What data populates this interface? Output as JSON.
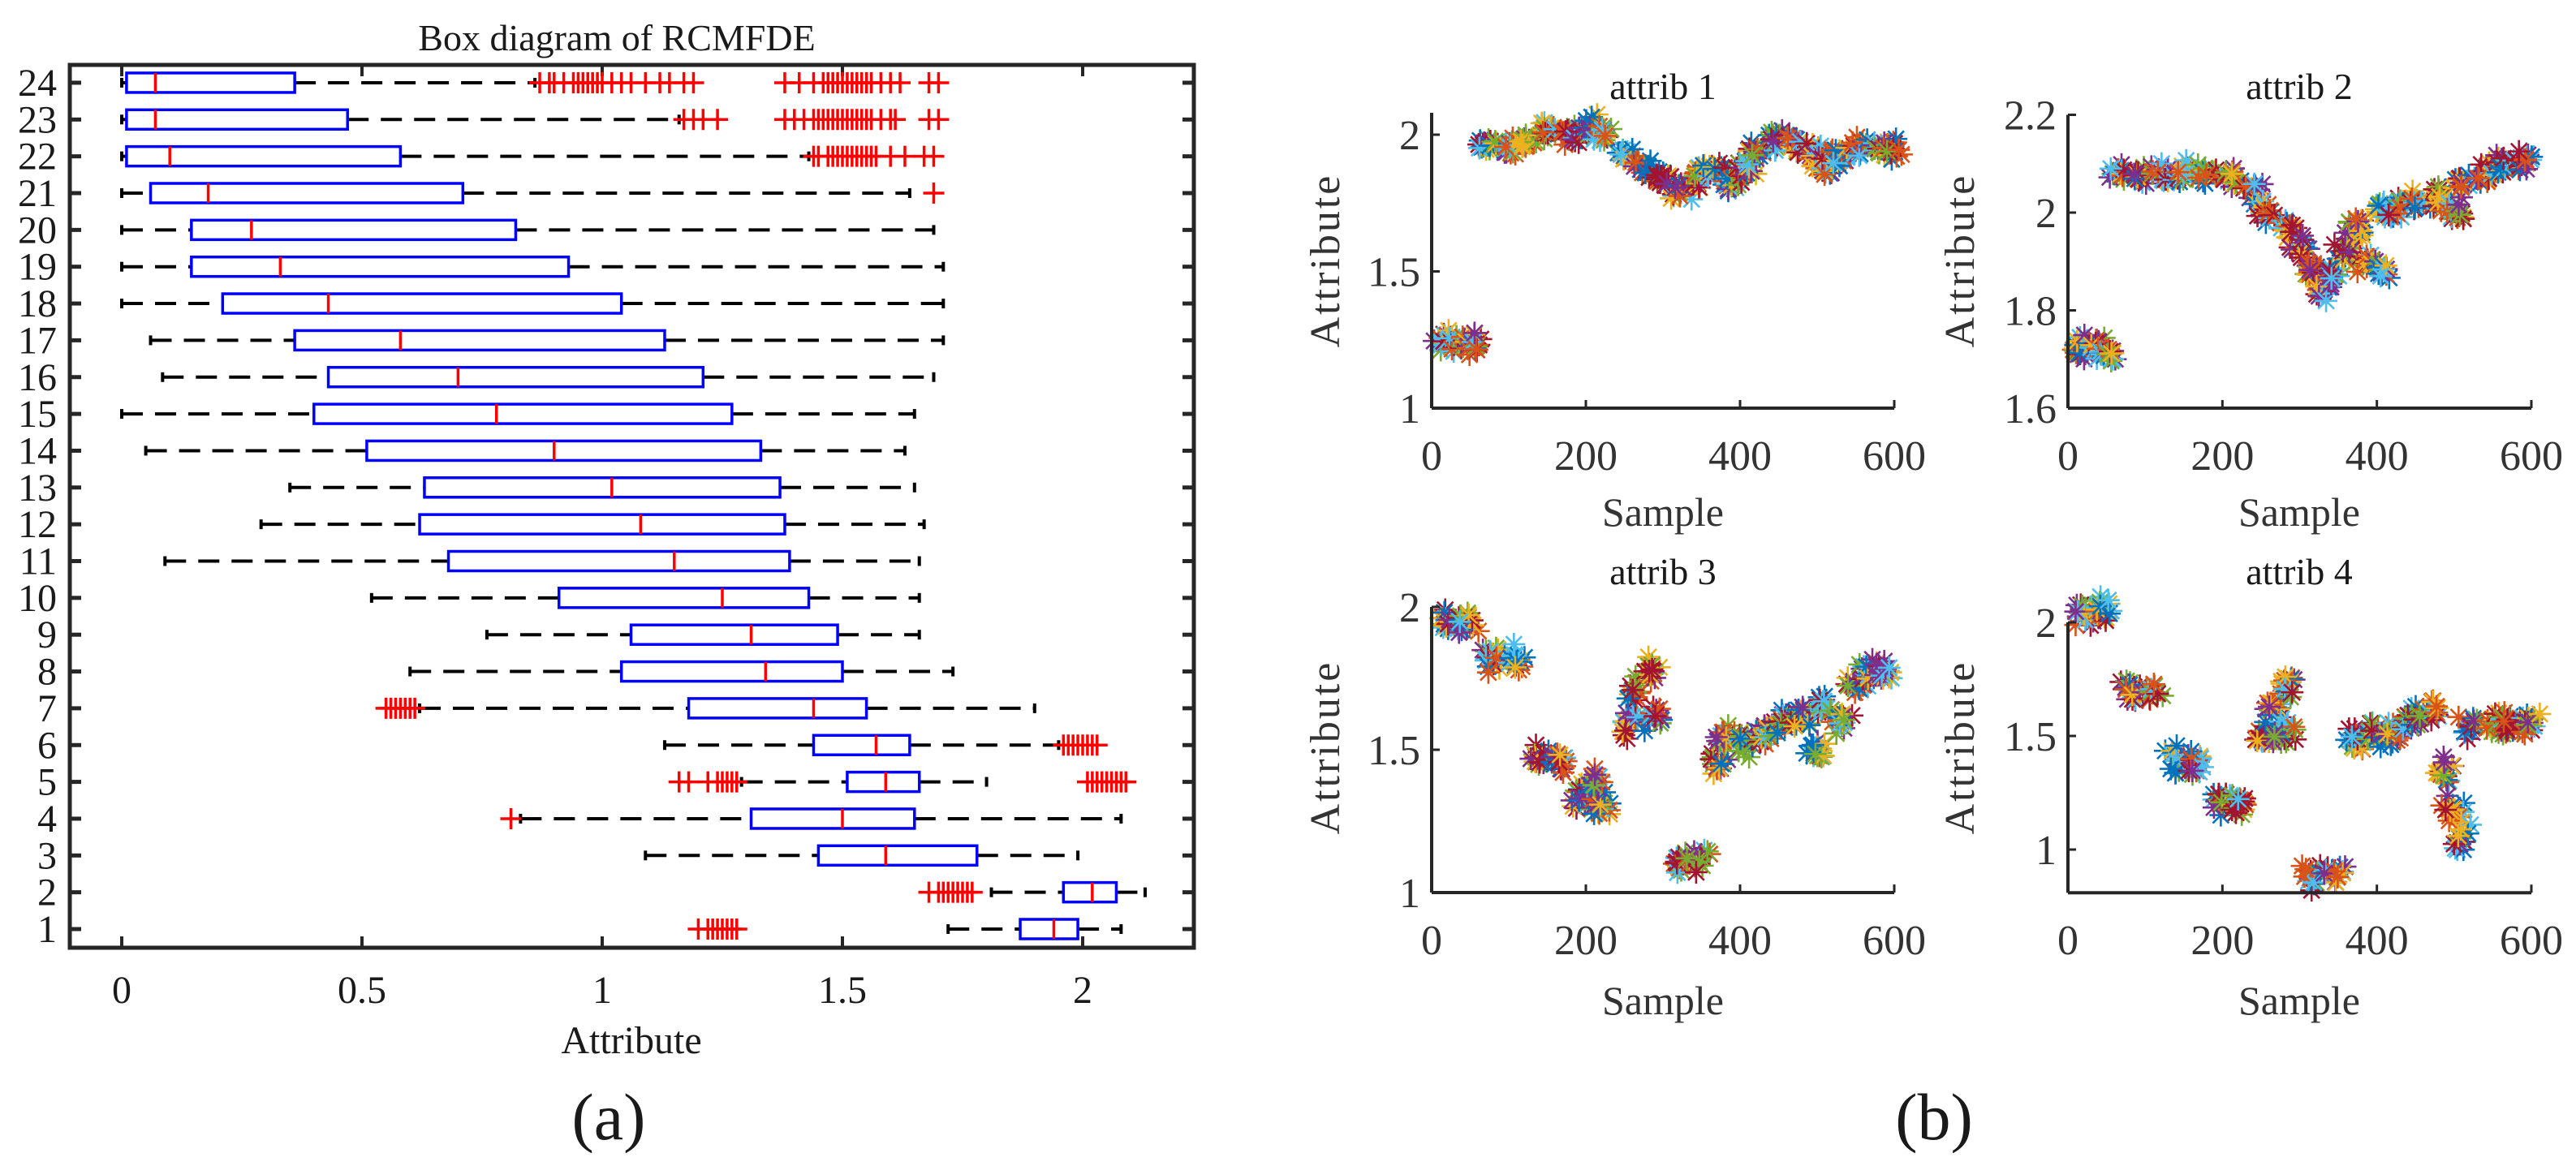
{
  "panel_labels": {
    "a": "(a)",
    "b": "(b)"
  },
  "colors": {
    "box": "#0000ff",
    "median": "#ff0000",
    "outlier": "#ff0000",
    "whisker": "#000000",
    "axis": "#262626",
    "scatter_palette": [
      "#0072BD",
      "#D95319",
      "#EDB120",
      "#7E2F8E",
      "#77AC30",
      "#4DBEEE",
      "#A2142F"
    ]
  },
  "chart_data": [
    {
      "type": "boxplot",
      "orientation": "horizontal",
      "title": "Box diagram of RCMFDE",
      "xlabel": "Attribute",
      "ylabel": "",
      "xlim": [
        -0.11,
        2.23
      ],
      "ylim": [
        0.5,
        24.5
      ],
      "x_ticks": [
        0,
        0.5,
        1,
        1.5,
        2
      ],
      "x_tick_labels": [
        "0",
        "0.5",
        "1",
        "1.5",
        "2"
      ],
      "grid": false,
      "rows": [
        {
          "label": "24",
          "whisker_low": 0.0,
          "q1": 0.01,
          "median": 0.07,
          "q3": 0.36,
          "whisker_high": 0.86,
          "outliers": [
            0.87,
            0.89,
            0.9,
            0.92,
            0.94,
            0.95,
            0.96,
            0.97,
            0.98,
            0.99,
            1.0,
            1.02,
            1.04,
            1.06,
            1.09,
            1.12,
            1.14,
            1.17,
            1.19,
            1.38,
            1.41,
            1.44,
            1.46,
            1.47,
            1.48,
            1.49,
            1.5,
            1.51,
            1.52,
            1.53,
            1.54,
            1.55,
            1.56,
            1.58,
            1.6,
            1.62,
            1.68,
            1.7
          ]
        },
        {
          "label": "23",
          "whisker_low": 0.0,
          "q1": 0.01,
          "median": 0.07,
          "q3": 0.47,
          "whisker_high": 1.16,
          "outliers": [
            1.17,
            1.19,
            1.21,
            1.24,
            1.38,
            1.4,
            1.42,
            1.44,
            1.45,
            1.46,
            1.47,
            1.48,
            1.49,
            1.5,
            1.51,
            1.52,
            1.53,
            1.54,
            1.55,
            1.56,
            1.58,
            1.6,
            1.61,
            1.68,
            1.7
          ]
        },
        {
          "label": "22",
          "whisker_low": 0.0,
          "q1": 0.01,
          "median": 0.1,
          "q3": 0.58,
          "whisker_high": 1.43,
          "outliers": [
            1.44,
            1.45,
            1.47,
            1.48,
            1.49,
            1.5,
            1.51,
            1.52,
            1.53,
            1.54,
            1.55,
            1.56,
            1.57,
            1.6,
            1.63,
            1.67,
            1.69
          ]
        },
        {
          "label": "21",
          "whisker_low": 0.0,
          "q1": 0.06,
          "median": 0.18,
          "q3": 0.71,
          "whisker_high": 1.64,
          "outliers": [
            1.69
          ]
        },
        {
          "label": "20",
          "whisker_low": 0.0,
          "q1": 0.145,
          "median": 0.27,
          "q3": 0.82,
          "whisker_high": 1.69,
          "outliers": []
        },
        {
          "label": "19",
          "whisker_low": 0.0,
          "q1": 0.145,
          "median": 0.33,
          "q3": 0.93,
          "whisker_high": 1.71,
          "outliers": []
        },
        {
          "label": "18",
          "whisker_low": 0.0,
          "q1": 0.21,
          "median": 0.43,
          "q3": 1.04,
          "whisker_high": 1.71,
          "outliers": []
        },
        {
          "label": "17",
          "whisker_low": 0.06,
          "q1": 0.36,
          "median": 0.58,
          "q3": 1.13,
          "whisker_high": 1.71,
          "outliers": []
        },
        {
          "label": "16",
          "whisker_low": 0.085,
          "q1": 0.43,
          "median": 0.7,
          "q3": 1.21,
          "whisker_high": 1.69,
          "outliers": []
        },
        {
          "label": "15",
          "whisker_low": 0.0,
          "q1": 0.4,
          "median": 0.78,
          "q3": 1.27,
          "whisker_high": 1.65,
          "outliers": []
        },
        {
          "label": "14",
          "whisker_low": 0.05,
          "q1": 0.51,
          "median": 0.9,
          "q3": 1.33,
          "whisker_high": 1.63,
          "outliers": []
        },
        {
          "label": "13",
          "whisker_low": 0.35,
          "q1": 0.63,
          "median": 1.02,
          "q3": 1.37,
          "whisker_high": 1.65,
          "outliers": []
        },
        {
          "label": "12",
          "whisker_low": 0.29,
          "q1": 0.62,
          "median": 1.08,
          "q3": 1.38,
          "whisker_high": 1.67,
          "outliers": []
        },
        {
          "label": "11",
          "whisker_low": 0.09,
          "q1": 0.68,
          "median": 1.15,
          "q3": 1.39,
          "whisker_high": 1.66,
          "outliers": []
        },
        {
          "label": "10",
          "whisker_low": 0.52,
          "q1": 0.91,
          "median": 1.25,
          "q3": 1.43,
          "whisker_high": 1.66,
          "outliers": []
        },
        {
          "label": "9",
          "whisker_low": 0.76,
          "q1": 1.06,
          "median": 1.31,
          "q3": 1.49,
          "whisker_high": 1.66,
          "outliers": []
        },
        {
          "label": "8",
          "whisker_low": 0.6,
          "q1": 1.04,
          "median": 1.34,
          "q3": 1.5,
          "whisker_high": 1.73,
          "outliers": []
        },
        {
          "label": "7",
          "whisker_low": 0.62,
          "q1": 1.18,
          "median": 1.44,
          "q3": 1.55,
          "whisker_high": 1.9,
          "outliers": [
            0.55,
            0.56,
            0.57,
            0.58,
            0.59,
            0.6,
            0.61
          ]
        },
        {
          "label": "6",
          "whisker_low": 1.13,
          "q1": 1.44,
          "median": 1.57,
          "q3": 1.64,
          "whisker_high": 1.95,
          "outliers": [
            1.96,
            1.97,
            1.98,
            1.99,
            2.0,
            2.01,
            2.02,
            2.03
          ]
        },
        {
          "label": "5",
          "whisker_low": 1.29,
          "q1": 1.51,
          "median": 1.59,
          "q3": 1.66,
          "whisker_high": 1.8,
          "outliers": [
            1.16,
            1.18,
            1.22,
            1.24,
            1.25,
            1.26,
            1.27,
            1.28,
            2.01,
            2.02,
            2.03,
            2.04,
            2.05,
            2.06,
            2.07,
            2.08,
            2.09
          ]
        },
        {
          "label": "4",
          "whisker_low": 0.83,
          "q1": 1.31,
          "median": 1.5,
          "q3": 1.65,
          "whisker_high": 2.08,
          "outliers": [
            0.81
          ]
        },
        {
          "label": "3",
          "whisker_low": 1.09,
          "q1": 1.45,
          "median": 1.59,
          "q3": 1.78,
          "whisker_high": 1.99,
          "outliers": []
        },
        {
          "label": "2",
          "whisker_low": 1.81,
          "q1": 1.96,
          "median": 2.02,
          "q3": 2.07,
          "whisker_high": 2.13,
          "outliers": [
            1.68,
            1.7,
            1.71,
            1.72,
            1.73,
            1.74,
            1.75,
            1.76,
            1.77
          ]
        },
        {
          "label": "1",
          "whisker_low": 1.72,
          "q1": 1.87,
          "median": 1.94,
          "q3": 1.99,
          "whisker_high": 2.08,
          "outliers": [
            1.2,
            1.22,
            1.23,
            1.24,
            1.25,
            1.26,
            1.27,
            1.28
          ]
        }
      ]
    },
    {
      "type": "scatter",
      "marker": "asterisk",
      "title": "attrib 1",
      "xlabel": "Sample",
      "ylabel": "Attribute",
      "xlim": [
        0,
        600
      ],
      "ylim": [
        1,
        2.08
      ],
      "x_ticks": [
        0,
        200,
        400,
        600
      ],
      "x_tick_labels": [
        "0",
        "200",
        "400",
        "600"
      ],
      "y_ticks": [
        1,
        1.5,
        2
      ],
      "y_tick_labels": [
        "1",
        "1.5",
        "2"
      ],
      "spread": [
        12,
        0.035
      ],
      "points": [
        [
          15,
          1.24
        ],
        [
          35,
          1.25
        ],
        [
          55,
          1.23
        ],
        [
          70,
          1.96
        ],
        [
          95,
          1.95
        ],
        [
          120,
          1.97
        ],
        [
          150,
          2.01
        ],
        [
          180,
          2.0
        ],
        [
          205,
          2.03
        ],
        [
          225,
          2.01
        ],
        [
          250,
          1.93
        ],
        [
          275,
          1.88
        ],
        [
          300,
          1.84
        ],
        [
          320,
          1.8
        ],
        [
          345,
          1.84
        ],
        [
          370,
          1.88
        ],
        [
          390,
          1.82
        ],
        [
          405,
          1.87
        ],
        [
          420,
          1.93
        ],
        [
          445,
          1.99
        ],
        [
          470,
          1.97
        ],
        [
          495,
          1.94
        ],
        [
          510,
          1.88
        ],
        [
          530,
          1.93
        ],
        [
          555,
          1.95
        ],
        [
          580,
          1.95
        ],
        [
          595,
          1.95
        ]
      ]
    },
    {
      "type": "scatter",
      "marker": "asterisk",
      "title": "attrib 2",
      "xlabel": "Sample",
      "ylabel": "Attribute",
      "xlim": [
        0,
        600
      ],
      "ylim": [
        1.6,
        2.2
      ],
      "x_ticks": [
        0,
        200,
        400,
        600
      ],
      "x_tick_labels": [
        "0",
        "200",
        "400",
        "600"
      ],
      "y_ticks": [
        1.6,
        1.8,
        2,
        2.2
      ],
      "y_tick_labels": [
        "1.6",
        "1.8",
        "2",
        "2.2"
      ],
      "spread": [
        12,
        0.02
      ],
      "points": [
        [
          15,
          1.72
        ],
        [
          35,
          1.73
        ],
        [
          55,
          1.71
        ],
        [
          65,
          2.08
        ],
        [
          90,
          2.08
        ],
        [
          120,
          2.08
        ],
        [
          150,
          2.08
        ],
        [
          180,
          2.08
        ],
        [
          210,
          2.07
        ],
        [
          240,
          2.04
        ],
        [
          260,
          2.0
        ],
        [
          285,
          1.97
        ],
        [
          300,
          1.93
        ],
        [
          315,
          1.88
        ],
        [
          330,
          1.84
        ],
        [
          345,
          1.87
        ],
        [
          360,
          1.92
        ],
        [
          375,
          1.97
        ],
        [
          390,
          1.9
        ],
        [
          405,
          1.88
        ],
        [
          410,
          2.0
        ],
        [
          430,
          2.01
        ],
        [
          455,
          2.02
        ],
        [
          480,
          2.03
        ],
        [
          500,
          2.0
        ],
        [
          515,
          2.06
        ],
        [
          540,
          2.08
        ],
        [
          565,
          2.1
        ],
        [
          590,
          2.1
        ]
      ]
    },
    {
      "type": "scatter",
      "marker": "asterisk",
      "title": "attrib 3",
      "xlabel": "Sample",
      "ylabel": "Attribute",
      "xlim": [
        0,
        600
      ],
      "ylim": [
        1,
        2
      ],
      "x_ticks": [
        0,
        200,
        400,
        600
      ],
      "x_tick_labels": [
        "0",
        "200",
        "400",
        "600"
      ],
      "y_ticks": [
        1,
        1.5,
        2
      ],
      "y_tick_labels": [
        "1",
        "1.5",
        "2"
      ],
      "spread": [
        12,
        0.04
      ],
      "points": [
        [
          20,
          1.96
        ],
        [
          45,
          1.95
        ],
        [
          80,
          1.82
        ],
        [
          110,
          1.82
        ],
        [
          140,
          1.48
        ],
        [
          165,
          1.46
        ],
        [
          195,
          1.34
        ],
        [
          220,
          1.3
        ],
        [
          215,
          1.38
        ],
        [
          255,
          1.58
        ],
        [
          265,
          1.7
        ],
        [
          285,
          1.78
        ],
        [
          290,
          1.62
        ],
        [
          320,
          1.1
        ],
        [
          345,
          1.12
        ],
        [
          370,
          1.45
        ],
        [
          380,
          1.55
        ],
        [
          405,
          1.52
        ],
        [
          430,
          1.55
        ],
        [
          455,
          1.6
        ],
        [
          480,
          1.62
        ],
        [
          500,
          1.5
        ],
        [
          505,
          1.65
        ],
        [
          530,
          1.6
        ],
        [
          550,
          1.72
        ],
        [
          570,
          1.78
        ],
        [
          590,
          1.78
        ]
      ]
    },
    {
      "type": "scatter",
      "marker": "asterisk",
      "title": "attrib 4",
      "xlabel": "Sample",
      "ylabel": "Attribute",
      "xlim": [
        0,
        600
      ],
      "ylim": [
        0.81,
        2
      ],
      "x_ticks": [
        0,
        200,
        400,
        600
      ],
      "x_tick_labels": [
        "0",
        "200",
        "400",
        "600"
      ],
      "y_ticks": [
        1,
        1.5,
        2
      ],
      "y_tick_labels": [
        "1",
        "1.5",
        "2"
      ],
      "spread": [
        12,
        0.05
      ],
      "points": [
        [
          20,
          2.04
        ],
        [
          45,
          2.05
        ],
        [
          80,
          1.7
        ],
        [
          110,
          1.7
        ],
        [
          140,
          1.4
        ],
        [
          165,
          1.38
        ],
        [
          195,
          1.22
        ],
        [
          220,
          1.18
        ],
        [
          255,
          1.5
        ],
        [
          265,
          1.62
        ],
        [
          285,
          1.72
        ],
        [
          280,
          1.5
        ],
        [
          315,
          0.88
        ],
        [
          345,
          0.9
        ],
        [
          370,
          1.48
        ],
        [
          395,
          1.52
        ],
        [
          420,
          1.5
        ],
        [
          445,
          1.58
        ],
        [
          470,
          1.6
        ],
        [
          490,
          1.35
        ],
        [
          500,
          1.18
        ],
        [
          510,
          1.05
        ],
        [
          520,
          1.55
        ],
        [
          550,
          1.55
        ],
        [
          575,
          1.55
        ],
        [
          595,
          1.55
        ]
      ]
    }
  ]
}
